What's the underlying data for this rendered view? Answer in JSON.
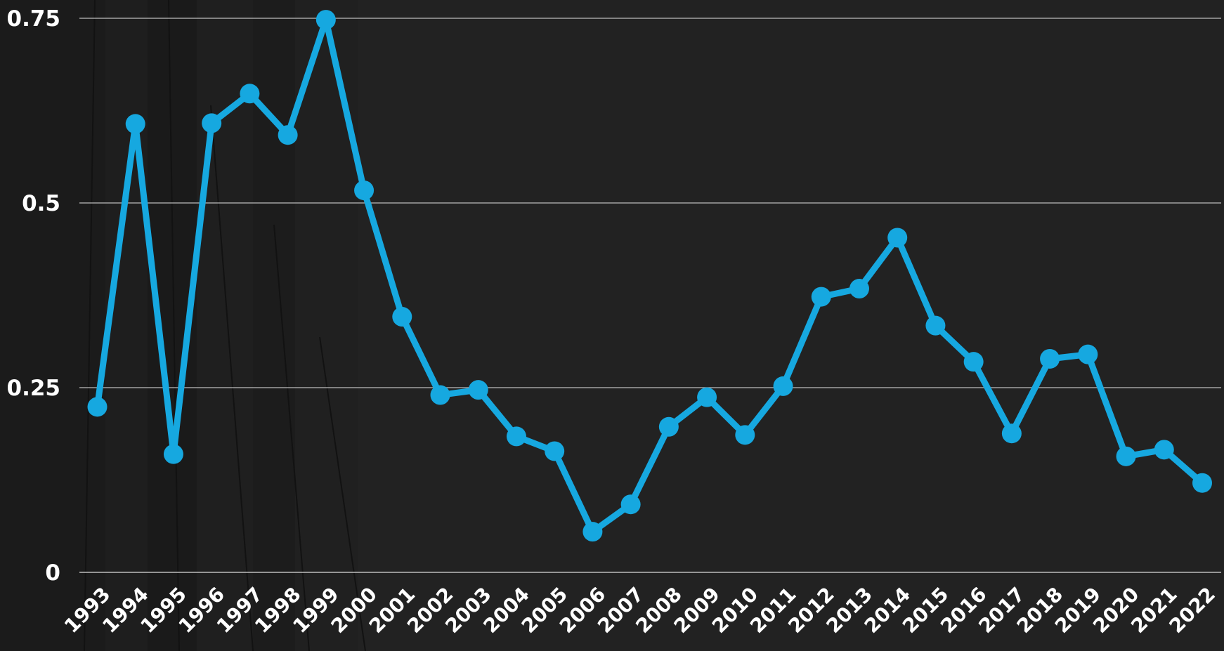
{
  "chart_data": {
    "type": "line",
    "title": "",
    "xlabel": "",
    "ylabel": "",
    "categories": [
      "1993",
      "1994",
      "1995",
      "1996",
      "1997",
      "1998",
      "1999",
      "2000",
      "2001",
      "2002",
      "2003",
      "2004",
      "2005",
      "2006",
      "2007",
      "2008",
      "2009",
      "2010",
      "2011",
      "2012",
      "2013",
      "2014",
      "2015",
      "2016",
      "2017",
      "2018",
      "2019",
      "2020",
      "2021",
      "2022"
    ],
    "series": [
      {
        "values": [
          0.224,
          0.607,
          0.16,
          0.608,
          0.648,
          0.592,
          0.748,
          0.517,
          0.346,
          0.24,
          0.247,
          0.184,
          0.164,
          0.055,
          0.092,
          0.197,
          0.237,
          0.186,
          0.252,
          0.373,
          0.384,
          0.453,
          0.334,
          0.285,
          0.188,
          0.289,
          0.295,
          0.157,
          0.166,
          0.121
        ],
        "color": "#16a8e0"
      }
    ],
    "yticks": [
      0,
      0.25,
      0.5,
      0.75
    ],
    "ytick_labels": [
      "0",
      "0.25",
      "0.5",
      "0.75"
    ],
    "ylim": [
      0,
      0.75
    ],
    "grid": true,
    "legend": "none",
    "colors": {
      "background": "#222222",
      "gridline": "#bdbdbd",
      "text": "#ffffff",
      "line": "#16a8e0"
    }
  }
}
